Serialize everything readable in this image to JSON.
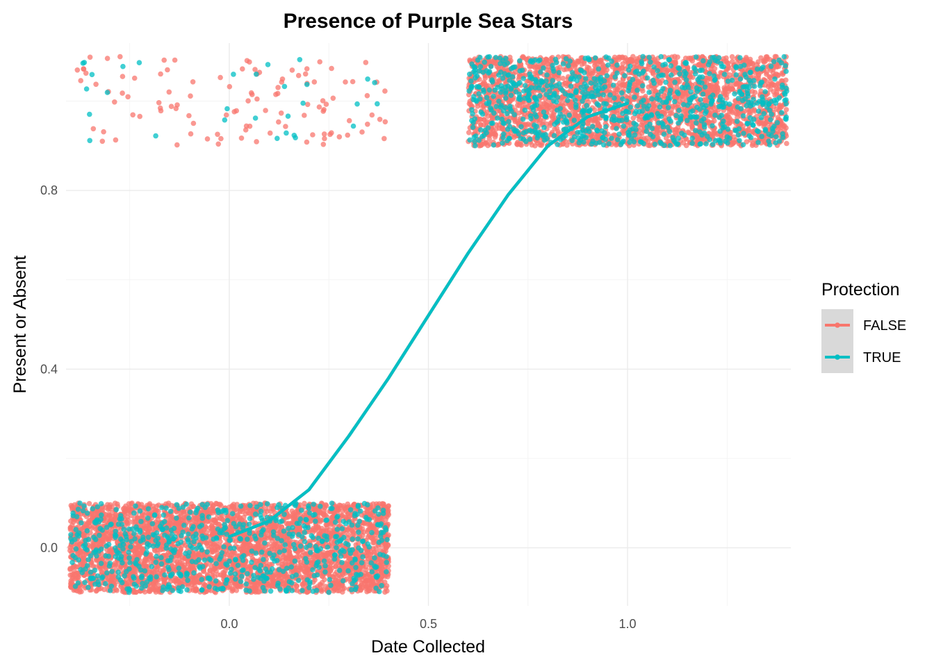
{
  "chart_data": {
    "type": "scatter",
    "title": "Presence of Purple Sea Stars",
    "xlabel": "Date Collected",
    "ylabel": "Present or Absent",
    "xlim": [
      -0.41,
      1.41
    ],
    "ylim": [
      -0.13,
      1.13
    ],
    "x_ticks": [
      0.0,
      0.5,
      1.0
    ],
    "x_tick_labels": [
      "0.0",
      "0.5",
      "1.0"
    ],
    "y_ticks": [
      0.0,
      0.4,
      0.8
    ],
    "y_tick_labels": [
      "0.0",
      "0.4",
      "0.8"
    ],
    "grid": true,
    "legend": {
      "title": "Protection",
      "position": "right",
      "entries": [
        "FALSE",
        "TRUE"
      ]
    },
    "jitter": {
      "width": 0.4,
      "height": 0.1
    },
    "series": [
      {
        "name": "FALSE",
        "color": "#F8766D",
        "points_at": [
          {
            "x": 0,
            "y": 0,
            "n": 3600
          },
          {
            "x": 0,
            "y": 1,
            "n": 110
          },
          {
            "x": 1,
            "y": 1,
            "n": 2700
          }
        ]
      },
      {
        "name": "TRUE",
        "color": "#00BFC4",
        "points_at": [
          {
            "x": 0,
            "y": 0,
            "n": 650
          },
          {
            "x": 0,
            "y": 1,
            "n": 30
          },
          {
            "x": 1,
            "y": 1,
            "n": 800
          }
        ]
      }
    ],
    "fit_line": {
      "type": "logistic",
      "color": "#00BFC4",
      "x": [
        0.0,
        0.1,
        0.2,
        0.3,
        0.4,
        0.5,
        0.6,
        0.7,
        0.8,
        0.9,
        1.0
      ],
      "y": [
        0.025,
        0.06,
        0.13,
        0.25,
        0.38,
        0.52,
        0.66,
        0.79,
        0.9,
        0.965,
        0.995
      ]
    }
  }
}
